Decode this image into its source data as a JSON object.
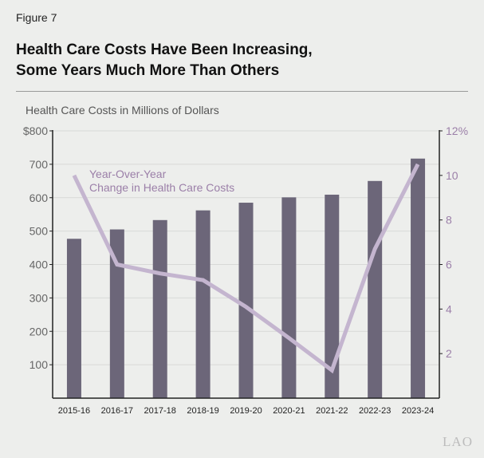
{
  "figure_label": "Figure 7",
  "title_line1": "Health Care Costs Have Been Increasing,",
  "title_line2": "Some Years Much More Than Others",
  "logo": "LAO",
  "chart_data": {
    "type": "bar+line",
    "ylabel": "Health Care Costs in Millions of Dollars",
    "categories": [
      "2015-16",
      "2016-17",
      "2017-18",
      "2018-19",
      "2019-20",
      "2020-21",
      "2021-22",
      "2022-23",
      "2023-24"
    ],
    "series": [
      {
        "type": "bar",
        "axis": "left",
        "color": "#6c6679",
        "values": [
          477,
          505,
          533,
          562,
          585,
          601,
          609,
          650,
          717
        ]
      },
      {
        "type": "line",
        "axis": "right",
        "name": "Year-Over-Year Change in Health Care Costs",
        "name_line1": "Year-Over-Year",
        "name_line2": "Change in Health Care Costs",
        "color": "#c4b5cf",
        "values": [
          10.0,
          6.0,
          5.6,
          5.3,
          4.1,
          2.7,
          1.25,
          6.7,
          10.5
        ]
      }
    ],
    "left_axis": {
      "ylim": [
        0,
        800
      ],
      "ticks": [
        100,
        200,
        300,
        400,
        500,
        600,
        700,
        800
      ],
      "tick_labels": [
        "100",
        "200",
        "300",
        "400",
        "500",
        "600",
        "700",
        "$800"
      ]
    },
    "right_axis": {
      "ylim": [
        0,
        12
      ],
      "ticks": [
        2,
        4,
        6,
        8,
        10,
        12
      ],
      "tick_labels": [
        "2",
        "4",
        "6",
        "8",
        "10",
        "12%"
      ],
      "color": "#9b7fa8"
    },
    "grid": true,
    "legend": "inline-label top-left"
  }
}
